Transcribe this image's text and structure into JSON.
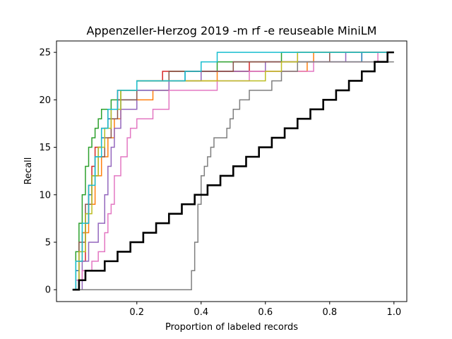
{
  "chart_data": {
    "type": "line",
    "title": "Appenzeller-Herzog 2019 -m rf -e reuseable MiniLM",
    "xlabel": "Proportion of labeled records",
    "ylabel": "Recall",
    "xlim": [
      -0.05,
      1.04
    ],
    "ylim": [
      -1.25,
      26.2
    ],
    "xticks": [
      0.2,
      0.4,
      0.6,
      0.8,
      1.0
    ],
    "xtick_labels": [
      "0.2",
      "0.4",
      "0.6",
      "0.8",
      "1.0"
    ],
    "yticks": [
      0,
      5,
      10,
      15,
      20,
      25
    ],
    "ytick_labels": [
      "0",
      "5",
      "10",
      "15",
      "20",
      "25"
    ],
    "grid": false,
    "legend": "none",
    "series": [
      {
        "color": "#1f77b4",
        "linewidth": 1.5,
        "points": [
          [
            0,
            0
          ],
          [
            0.01,
            2
          ],
          [
            0.02,
            4
          ],
          [
            0.03,
            6
          ],
          [
            0.04,
            8
          ],
          [
            0.05,
            10
          ],
          [
            0.06,
            12
          ],
          [
            0.07,
            14
          ],
          [
            0.08,
            15
          ],
          [
            0.09,
            16
          ],
          [
            0.1,
            17
          ],
          [
            0.11,
            18
          ],
          [
            0.12,
            19
          ],
          [
            0.15,
            20
          ],
          [
            0.2,
            21
          ],
          [
            0.3,
            22
          ],
          [
            0.35,
            23
          ],
          [
            0.5,
            24
          ],
          [
            0.9,
            25
          ],
          [
            1.0,
            25
          ]
        ]
      },
      {
        "color": "#ff7f0e",
        "linewidth": 1.5,
        "points": [
          [
            0,
            0
          ],
          [
            0.01,
            3
          ],
          [
            0.03,
            6
          ],
          [
            0.05,
            9
          ],
          [
            0.07,
            12
          ],
          [
            0.09,
            14
          ],
          [
            0.11,
            16
          ],
          [
            0.13,
            18
          ],
          [
            0.15,
            19
          ],
          [
            0.2,
            20
          ],
          [
            0.25,
            21
          ],
          [
            0.3,
            22
          ],
          [
            0.45,
            23
          ],
          [
            0.73,
            24
          ],
          [
            0.75,
            25
          ],
          [
            1.0,
            25
          ]
        ]
      },
      {
        "color": "#2ca02c",
        "linewidth": 1.5,
        "points": [
          [
            0,
            0
          ],
          [
            0.01,
            4
          ],
          [
            0.02,
            7
          ],
          [
            0.03,
            10
          ],
          [
            0.04,
            13
          ],
          [
            0.05,
            15
          ],
          [
            0.06,
            16
          ],
          [
            0.07,
            17
          ],
          [
            0.08,
            18
          ],
          [
            0.09,
            19
          ],
          [
            0.12,
            20
          ],
          [
            0.15,
            21
          ],
          [
            0.2,
            22
          ],
          [
            0.3,
            23
          ],
          [
            0.45,
            24
          ],
          [
            0.65,
            25
          ],
          [
            1.0,
            25
          ]
        ]
      },
      {
        "color": "#d62728",
        "linewidth": 1.5,
        "points": [
          [
            0,
            0
          ],
          [
            0.02,
            3
          ],
          [
            0.04,
            7
          ],
          [
            0.05,
            11
          ],
          [
            0.06,
            13
          ],
          [
            0.07,
            15
          ],
          [
            0.09,
            17
          ],
          [
            0.11,
            19
          ],
          [
            0.14,
            21
          ],
          [
            0.2,
            22
          ],
          [
            0.28,
            23
          ],
          [
            0.55,
            24
          ],
          [
            0.7,
            25
          ],
          [
            1.0,
            25
          ]
        ]
      },
      {
        "color": "#9467bd",
        "linewidth": 1.5,
        "points": [
          [
            0,
            0
          ],
          [
            0.03,
            3
          ],
          [
            0.05,
            5
          ],
          [
            0.08,
            7
          ],
          [
            0.1,
            10
          ],
          [
            0.11,
            13
          ],
          [
            0.12,
            15
          ],
          [
            0.13,
            17
          ],
          [
            0.15,
            19
          ],
          [
            0.2,
            21
          ],
          [
            0.3,
            22
          ],
          [
            0.4,
            23
          ],
          [
            0.6,
            24
          ],
          [
            0.85,
            25
          ],
          [
            1.0,
            25
          ]
        ]
      },
      {
        "color": "#8c564b",
        "linewidth": 1.5,
        "points": [
          [
            0,
            0
          ],
          [
            0.02,
            5
          ],
          [
            0.04,
            9
          ],
          [
            0.06,
            12
          ],
          [
            0.08,
            14
          ],
          [
            0.1,
            16
          ],
          [
            0.12,
            18
          ],
          [
            0.14,
            20
          ],
          [
            0.2,
            22
          ],
          [
            0.3,
            23
          ],
          [
            0.5,
            24
          ],
          [
            0.8,
            25
          ],
          [
            1.0,
            25
          ]
        ]
      },
      {
        "color": "#e377c2",
        "linewidth": 1.5,
        "points": [
          [
            0,
            0
          ],
          [
            0.01,
            1
          ],
          [
            0.03,
            2
          ],
          [
            0.06,
            3
          ],
          [
            0.08,
            4
          ],
          [
            0.1,
            6
          ],
          [
            0.11,
            8
          ],
          [
            0.12,
            9
          ],
          [
            0.13,
            12
          ],
          [
            0.15,
            14
          ],
          [
            0.17,
            16
          ],
          [
            0.18,
            17
          ],
          [
            0.2,
            18
          ],
          [
            0.25,
            19
          ],
          [
            0.3,
            21
          ],
          [
            0.45,
            22
          ],
          [
            0.55,
            23
          ],
          [
            0.75,
            24
          ],
          [
            0.95,
            25
          ],
          [
            1.0,
            25
          ]
        ]
      },
      {
        "color": "#7f7f7f",
        "linewidth": 1.5,
        "points": [
          [
            0,
            0
          ],
          [
            0.36,
            0
          ],
          [
            0.37,
            2
          ],
          [
            0.38,
            5
          ],
          [
            0.39,
            9
          ],
          [
            0.4,
            12
          ],
          [
            0.41,
            13
          ],
          [
            0.42,
            14
          ],
          [
            0.43,
            15
          ],
          [
            0.44,
            16
          ],
          [
            0.48,
            17
          ],
          [
            0.49,
            18
          ],
          [
            0.5,
            19
          ],
          [
            0.52,
            20
          ],
          [
            0.55,
            21
          ],
          [
            0.62,
            22
          ],
          [
            0.65,
            23
          ],
          [
            0.7,
            24
          ],
          [
            1.0,
            24
          ]
        ]
      },
      {
        "color": "#bcbd22",
        "linewidth": 1.5,
        "points": [
          [
            0,
            0
          ],
          [
            0.02,
            4
          ],
          [
            0.04,
            8
          ],
          [
            0.06,
            12
          ],
          [
            0.08,
            15
          ],
          [
            0.1,
            17
          ],
          [
            0.12,
            19
          ],
          [
            0.15,
            21
          ],
          [
            0.2,
            22
          ],
          [
            0.3,
            22
          ],
          [
            0.6,
            23
          ],
          [
            0.65,
            24
          ],
          [
            0.7,
            25
          ],
          [
            1.0,
            25
          ]
        ]
      },
      {
        "color": "#17becf",
        "linewidth": 1.5,
        "points": [
          [
            0,
            0
          ],
          [
            0.01,
            3
          ],
          [
            0.03,
            7
          ],
          [
            0.05,
            11
          ],
          [
            0.07,
            14
          ],
          [
            0.09,
            17
          ],
          [
            0.11,
            19
          ],
          [
            0.14,
            21
          ],
          [
            0.2,
            22
          ],
          [
            0.35,
            23
          ],
          [
            0.4,
            24
          ],
          [
            0.45,
            25
          ],
          [
            1.0,
            25
          ]
        ]
      },
      {
        "color": "#000000",
        "linewidth": 2.6,
        "points": [
          [
            0,
            0
          ],
          [
            0.02,
            1
          ],
          [
            0.04,
            2
          ],
          [
            0.1,
            3
          ],
          [
            0.14,
            4
          ],
          [
            0.18,
            5
          ],
          [
            0.22,
            6
          ],
          [
            0.26,
            7
          ],
          [
            0.3,
            8
          ],
          [
            0.34,
            9
          ],
          [
            0.38,
            10
          ],
          [
            0.42,
            11
          ],
          [
            0.46,
            12
          ],
          [
            0.5,
            13
          ],
          [
            0.54,
            14
          ],
          [
            0.58,
            15
          ],
          [
            0.62,
            16
          ],
          [
            0.66,
            17
          ],
          [
            0.7,
            18
          ],
          [
            0.74,
            19
          ],
          [
            0.78,
            20
          ],
          [
            0.82,
            21
          ],
          [
            0.86,
            22
          ],
          [
            0.9,
            23
          ],
          [
            0.94,
            24
          ],
          [
            0.98,
            25
          ],
          [
            1.0,
            25
          ]
        ]
      }
    ]
  }
}
